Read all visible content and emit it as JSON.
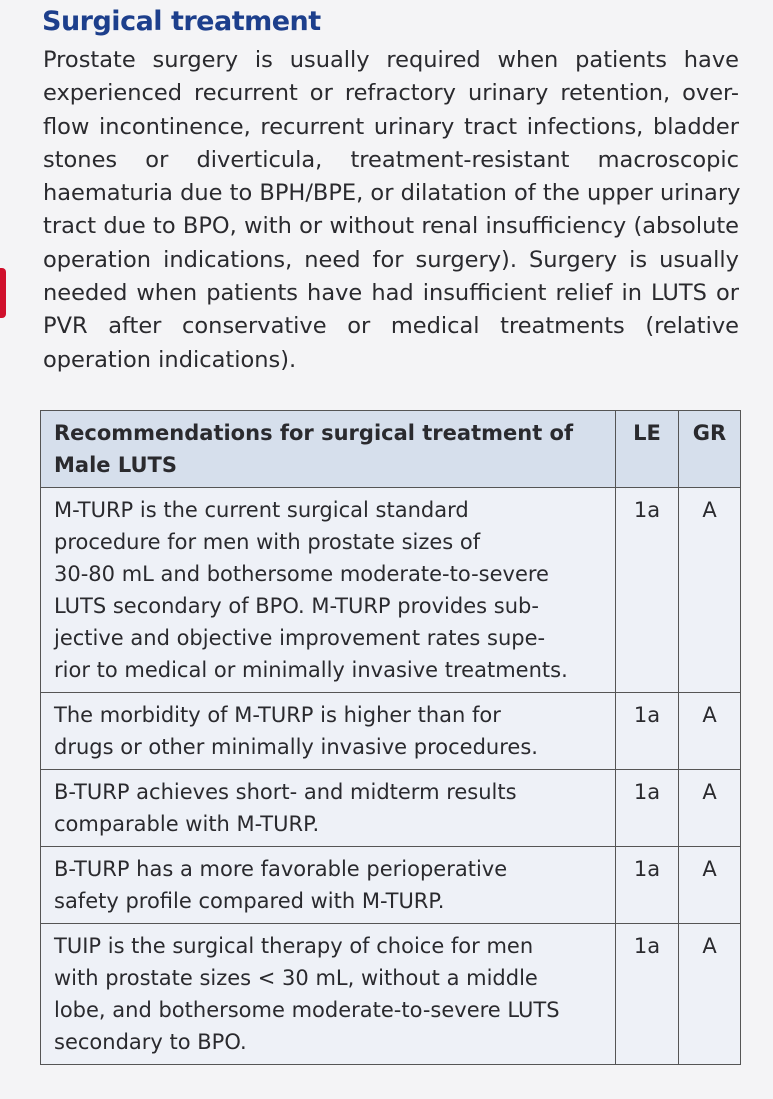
{
  "heading": "Surgical treatment",
  "paragraph": [
    "Prostate surgery is usually required when patients have",
    "experienced recurrent or refractory urinary retention, over-",
    "flow incontinence, recurrent urinary tract infections, bladder",
    "stones or diverticula, treatment-resistant macroscopic",
    "haematuria due to BPH/BPE, or dilatation of the upper urinary",
    "tract due to BPO, with or without renal insufficiency (absolute",
    "operation indications, need for surgery). Surgery is usually",
    "needed when patients have had insufficient relief in LUTS or",
    "PVR after conservative or medical treatments (relative",
    "operation indications)."
  ],
  "table": {
    "header": {
      "text": [
        "Recommendations for surgical treatment of",
        "Male LUTS"
      ],
      "le": "LE",
      "gr": "GR"
    },
    "rows": [
      {
        "text": [
          "M-TURP is the current surgical standard",
          "procedure for men with prostate sizes of",
          "30-80 mL and bothersome moderate-to-severe",
          "LUTS secondary of BPO. M-TURP provides sub-",
          "jective and objective improvement rates supe-",
          "rior to medical or minimally invasive treatments."
        ],
        "le": "1a",
        "gr": "A"
      },
      {
        "text": [
          "The morbidity of M-TURP is higher than for",
          "drugs or other minimally invasive procedures."
        ],
        "le": "1a",
        "gr": "A"
      },
      {
        "text": [
          "B-TURP achieves short- and midterm results",
          "comparable with M-TURP."
        ],
        "le": "1a",
        "gr": "A"
      },
      {
        "text": [
          "B-TURP has a more favorable perioperative",
          "safety profile compared with M-TURP."
        ],
        "le": "1a",
        "gr": "A"
      },
      {
        "text": [
          "TUIP is the surgical therapy of choice for men",
          "with prostate sizes < 30 mL, without a middle",
          "lobe, and bothersome moderate-to-severe LUTS",
          "secondary to BPO."
        ],
        "le": "1a",
        "gr": "A"
      }
    ]
  }
}
